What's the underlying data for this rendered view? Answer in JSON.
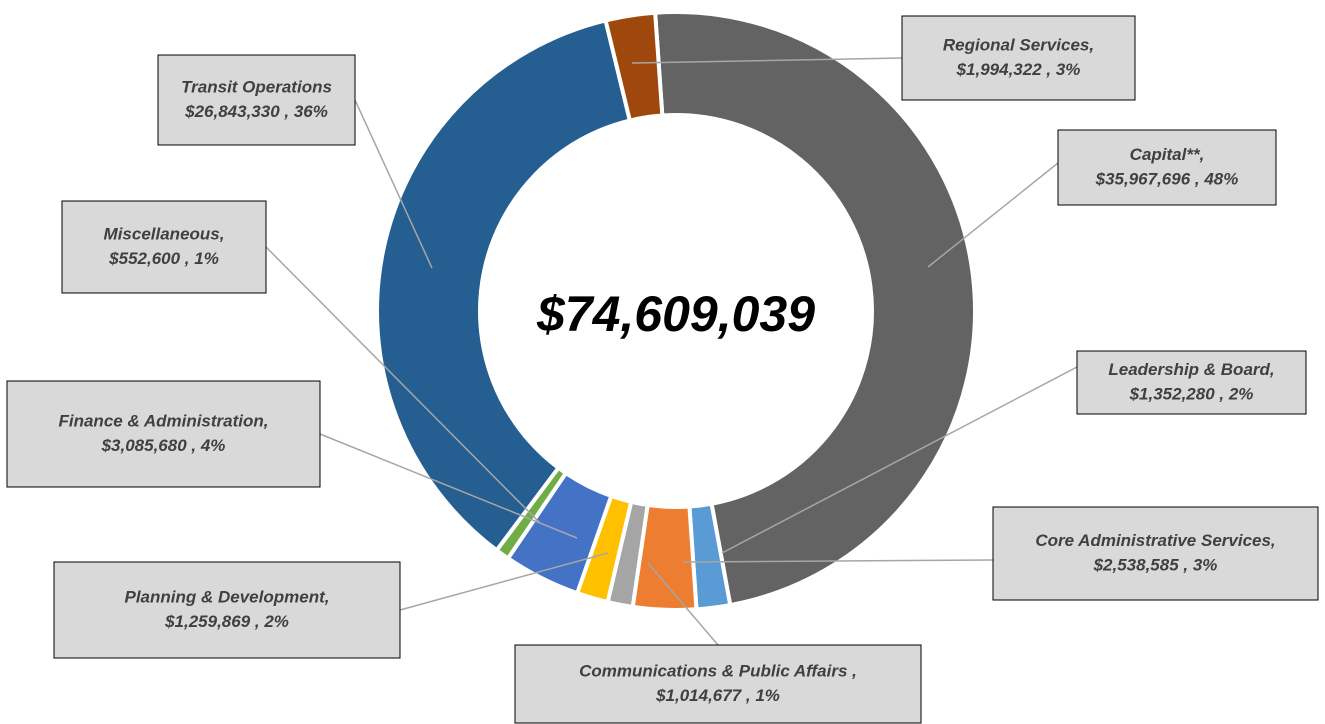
{
  "chart_data": {
    "type": "donut",
    "total": 74609039,
    "total_label": "$74,609,039",
    "label_separator": " , ",
    "categories": [
      "Capital**,",
      "Leadership & Board,",
      "Core Administrative Services,",
      "Communications & Public Affairs ,",
      "Planning & Development,",
      "Finance & Administration,",
      "Miscellaneous,",
      "Transit Operations",
      "Regional Services,"
    ],
    "values": [
      35967696,
      1352280,
      2538585,
      1014677,
      1259869,
      3085680,
      552600,
      26843330,
      1994322
    ],
    "value_labels": [
      "$35,967,696",
      "$1,352,280",
      "$2,538,585",
      "$1,014,677",
      "$1,259,869",
      "$3,085,680",
      "$552,600",
      "$26,843,330",
      "$1,994,322"
    ],
    "percent_labels": [
      "48%",
      "2%",
      "3%",
      "1%",
      "2%",
      "4%",
      "1%",
      "36%",
      "3%"
    ],
    "colors": [
      "#636363",
      "#5b9bd5",
      "#ed7d31",
      "#a5a5a5",
      "#ffc000",
      "#4472c4",
      "#70ad47",
      "#255e91",
      "#9e480e"
    ]
  }
}
